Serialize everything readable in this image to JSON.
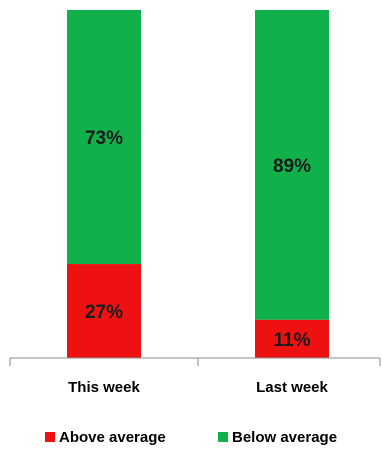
{
  "chart_data": {
    "type": "bar",
    "stacked": true,
    "percent": true,
    "categories": [
      "This week",
      "Last week"
    ],
    "series": [
      {
        "name": "Above average",
        "values": [
          27,
          11
        ],
        "labels": [
          "27%",
          "11%"
        ],
        "color": "#ee1111"
      },
      {
        "name": "Below average",
        "values": [
          73,
          89
        ],
        "labels": [
          "73%",
          "89%"
        ],
        "color": "#10b14b"
      }
    ],
    "ylim": [
      0,
      100
    ],
    "legend_position": "bottom",
    "grid": false
  }
}
